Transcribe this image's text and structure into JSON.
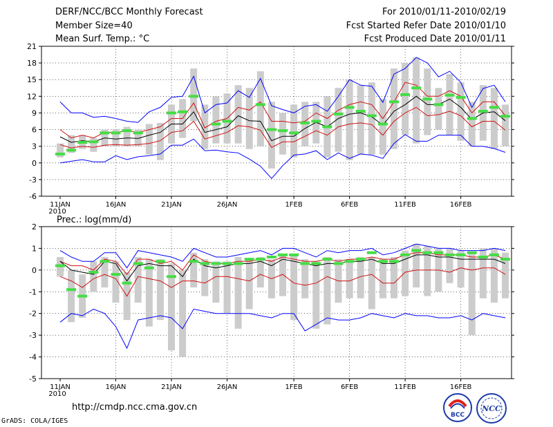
{
  "header": {
    "title": "DERF/NCC/BCC Monthly Forecast",
    "member_size": "Member Size=40",
    "variable": "Mean Surf. Temp.: °C",
    "period": "For 2010/01/11-2010/02/19",
    "fcst_started": "Fcst Started Refer Date 2010/01/10",
    "fcst_produced": "Fcst Produced Date 2010/01/11"
  },
  "footer": {
    "url": "http://cmdp.ncc.cma.gov.cn",
    "grads": "GrADS: COLA/IGES",
    "logo_bcc": "BCC",
    "logo_ncc": "NCC"
  },
  "colors": {
    "envelope": "#0000ff",
    "spread": "#d01010",
    "mean": "#000000",
    "box": "#cccccc",
    "observed": "#44dd44"
  },
  "chart_data": [
    {
      "type": "line",
      "title": "Mean Surf. Temp.: °C",
      "days": 40,
      "ylim": [
        -6,
        21
      ],
      "yticks": [
        -6,
        -3,
        0,
        3,
        6,
        9,
        12,
        15,
        18,
        21
      ],
      "xticks": [
        {
          "day": 0,
          "label": "11JAN",
          "sub": "2010"
        },
        {
          "day": 5,
          "label": "16JAN"
        },
        {
          "day": 10,
          "label": "21JAN"
        },
        {
          "day": 15,
          "label": "26JAN"
        },
        {
          "day": 21,
          "label": "1FEB"
        },
        {
          "day": 26,
          "label": "6FEB"
        },
        {
          "day": 31,
          "label": "11FEB"
        },
        {
          "day": 36,
          "label": "16FEB"
        }
      ],
      "series": [
        {
          "name": "max",
          "color": "#0000ff",
          "values": [
            11,
            9,
            9,
            8.2,
            8.4,
            8,
            7.5,
            7.3,
            9.2,
            10,
            11.8,
            12,
            15.6,
            9,
            10.5,
            10.8,
            13,
            11.8,
            15.2,
            10.3,
            9.6,
            9,
            10.2,
            10.5,
            9.3,
            12,
            15,
            14,
            13.8,
            10.9,
            16,
            17,
            19,
            18,
            15.5,
            16.5,
            14.5,
            10,
            13.4,
            14,
            11
          ]
        },
        {
          "name": "p90",
          "color": "#d01010",
          "values": [
            6,
            4.5,
            5,
            4.5,
            5.5,
            5.5,
            5.8,
            5.5,
            6,
            6.5,
            8,
            8,
            10.8,
            6.3,
            7.5,
            8,
            10,
            9.5,
            11,
            7.5,
            7.5,
            7.2,
            7.5,
            9,
            8,
            9.5,
            10.5,
            11,
            10.5,
            8,
            11,
            14.5,
            14,
            12,
            12,
            13,
            12,
            9,
            11,
            11,
            8.5
          ]
        },
        {
          "name": "mean",
          "color": "#000000",
          "values": [
            4.7,
            3.7,
            4,
            3.8,
            4.5,
            4.3,
            4.5,
            4.4,
            5,
            5.5,
            7,
            7,
            9.2,
            5.5,
            6,
            6.5,
            8.5,
            7.6,
            7.5,
            4,
            4.8,
            4.8,
            6.2,
            7.3,
            6.5,
            8,
            8.8,
            9,
            8.3,
            6.8,
            9.3,
            10.5,
            12,
            10.5,
            10.5,
            11.5,
            10,
            7.8,
            9,
            9.2,
            7.6
          ]
        },
        {
          "name": "p10",
          "color": "#d01010",
          "values": [
            3.3,
            2.7,
            3,
            2.8,
            3.2,
            3.3,
            3.2,
            3.3,
            3.5,
            4,
            5.5,
            5.8,
            7.5,
            4.3,
            4.9,
            5.5,
            6.7,
            6.5,
            5.9,
            2.8,
            3.8,
            3.8,
            4.8,
            5.8,
            5,
            6.5,
            7,
            7.2,
            6.9,
            5,
            7.5,
            9,
            10,
            8.5,
            8.7,
            9.3,
            8.5,
            6.5,
            7.5,
            7.5,
            5.9
          ]
        },
        {
          "name": "min",
          "color": "#0000ff",
          "values": [
            0,
            0.3,
            0.6,
            0.2,
            0.2,
            1.3,
            0.6,
            1.1,
            1.3,
            1.6,
            3.2,
            3.2,
            4.3,
            2.2,
            2.3,
            2,
            1.8,
            0.7,
            -0.6,
            -2.8,
            -0.5,
            1.4,
            1.6,
            2.2,
            0.6,
            1.8,
            0.8,
            1.6,
            1.4,
            0.8,
            3.5,
            5.1,
            3.9,
            3.9,
            5,
            5,
            5,
            3,
            3,
            2.6,
            1.9
          ]
        }
      ],
      "boxes": [
        [
          1,
          3.5
        ],
        [
          1.8,
          5
        ],
        [
          2.5,
          5
        ],
        [
          2,
          4.5
        ],
        [
          3,
          6
        ],
        [
          3,
          6
        ],
        [
          3,
          6.5
        ],
        [
          3,
          6
        ],
        [
          1.5,
          7
        ],
        [
          0.5,
          7.2
        ],
        [
          3.5,
          10.5
        ],
        [
          4.5,
          11.5
        ],
        [
          7.5,
          17
        ],
        [
          2.5,
          10.5
        ],
        [
          3.5,
          12
        ],
        [
          3.5,
          12.5
        ],
        [
          3.5,
          14
        ],
        [
          2.5,
          13.5
        ],
        [
          3,
          16.5
        ],
        [
          -1,
          11
        ],
        [
          1.5,
          9
        ],
        [
          1,
          10.5
        ],
        [
          3,
          11
        ],
        [
          3.5,
          11
        ],
        [
          1,
          12
        ],
        [
          2,
          13.5
        ],
        [
          0.5,
          15
        ],
        [
          1.5,
          14
        ],
        [
          1.5,
          14.5
        ],
        [
          1.5,
          11.5
        ],
        [
          2.5,
          17
        ],
        [
          5,
          18
        ],
        [
          3.5,
          19
        ],
        [
          5,
          17
        ],
        [
          6,
          13.5
        ],
        [
          5,
          16
        ],
        [
          4,
          14.5
        ],
        [
          3,
          11
        ],
        [
          4,
          14
        ],
        [
          2.5,
          13.5
        ],
        [
          3,
          10.5
        ]
      ],
      "observed": [
        1.6,
        2.3,
        3.7,
        3.8,
        5.4,
        5.4,
        5.8,
        5.4,
        null,
        null,
        9,
        9.2,
        12,
        null,
        7,
        7.5,
        null,
        null,
        10.5,
        6,
        5.8,
        5.4,
        7.2,
        7.5,
        6.5,
        8.8,
        10,
        9.3,
        8.5,
        7,
        11,
        12.3,
        13.5,
        11.5,
        10.5,
        12.2,
        11.8,
        8,
        9.3,
        10,
        8.4
      ]
    },
    {
      "type": "line",
      "title": "Prec.: log(mm/d)",
      "days": 40,
      "ylim": [
        -5,
        2
      ],
      "yticks": [
        -5,
        -4,
        -3,
        -2,
        -1,
        0,
        1,
        2
      ],
      "xticks": [
        {
          "day": 0,
          "label": "11JAN",
          "sub": "2010"
        },
        {
          "day": 5,
          "label": "16JAN"
        },
        {
          "day": 10,
          "label": "21JAN"
        },
        {
          "day": 15,
          "label": "26JAN"
        },
        {
          "day": 21,
          "label": "1FEB"
        },
        {
          "day": 26,
          "label": "6FEB"
        },
        {
          "day": 31,
          "label": "11FEB"
        },
        {
          "day": 36,
          "label": "16FEB"
        }
      ],
      "series": [
        {
          "name": "max",
          "color": "#0000ff",
          "values": [
            0.9,
            0.6,
            0.4,
            0.4,
            0.8,
            0.8,
            0.1,
            0.9,
            0.8,
            0.7,
            0.6,
            0.4,
            1,
            0.8,
            0.6,
            0.6,
            0.7,
            0.8,
            0.9,
            0.7,
            1,
            1,
            0.8,
            0.6,
            0.9,
            0.8,
            0.9,
            0.9,
            1,
            0.7,
            0.8,
            1,
            1.2,
            1.1,
            1,
            1,
            0.9,
            0.9,
            0.9,
            1,
            0.9
          ]
        },
        {
          "name": "p90",
          "color": "#d01010",
          "values": [
            0.4,
            0.2,
            0.2,
            0,
            0.5,
            0.4,
            -0.2,
            0.5,
            0.5,
            0.3,
            0.4,
            0,
            0.7,
            0.4,
            0.3,
            0.3,
            0.4,
            0.4,
            0.5,
            0.4,
            0.6,
            0.5,
            0.4,
            0.4,
            0.5,
            0.4,
            0.5,
            0.5,
            0.6,
            0.5,
            0.5,
            0.7,
            0.8,
            0.8,
            0.7,
            0.7,
            0.7,
            0.6,
            0.6,
            0.7,
            0.5
          ]
        },
        {
          "name": "mean",
          "color": "#000000",
          "values": [
            0.4,
            0,
            -0.1,
            -0.2,
            0.4,
            0.3,
            -0.5,
            0.2,
            0.3,
            0.2,
            0.2,
            -0.3,
            0.5,
            0.2,
            0.1,
            0.2,
            0.3,
            0.3,
            0.4,
            0.2,
            0.5,
            0.4,
            0.3,
            0.2,
            0.3,
            0.3,
            0.4,
            0.4,
            0.5,
            0.3,
            0.3,
            0.5,
            0.7,
            0.7,
            0.6,
            0.6,
            0.5,
            0.5,
            0.5,
            0.5,
            0.3
          ]
        },
        {
          "name": "p10",
          "color": "#d01010",
          "values": [
            -0.3,
            -0.5,
            -0.8,
            -0.4,
            -0.2,
            -0.4,
            -1.2,
            -0.3,
            -0.4,
            -0.5,
            -0.8,
            -0.5,
            -0.5,
            -0.6,
            -0.3,
            -0.3,
            -0.4,
            -0.5,
            -0.2,
            -0.4,
            -0.2,
            -0.6,
            -0.7,
            -0.6,
            -0.3,
            -0.5,
            -0.5,
            -0.3,
            -0.2,
            -0.6,
            -0.6,
            -0.1,
            0,
            0,
            0,
            -0.1,
            0.1,
            0,
            0.1,
            0.1,
            -0.2
          ]
        },
        {
          "name": "min",
          "color": "#0000ff",
          "values": [
            -2.4,
            -2,
            -2.1,
            -1.8,
            -2,
            -2.6,
            -3.6,
            -2.3,
            -2.2,
            -2.1,
            -2.2,
            -2.7,
            -1.8,
            -1.9,
            -2,
            -2,
            -2,
            -2,
            -2.1,
            -2.2,
            -2,
            -2,
            -2.8,
            -2.5,
            -2.2,
            -2.3,
            -2.3,
            -2.2,
            -2,
            -2.1,
            -2.2,
            -2,
            -2.1,
            -2.1,
            -2.2,
            -2.2,
            -2.1,
            -2.3,
            -2,
            -2.1,
            -2.2
          ]
        }
      ],
      "boxes": [
        [
          -0.3,
          0.6
        ],
        [
          -2.4,
          0
        ],
        [
          -2.2,
          -0.2
        ],
        [
          -1,
          0.4
        ],
        [
          -0.8,
          0.6
        ],
        [
          -1.5,
          0.4
        ],
        [
          -2.3,
          -0.1
        ],
        [
          -1.5,
          0.6
        ],
        [
          -2.6,
          0.5
        ],
        [
          -2.3,
          0.5
        ],
        [
          -3.7,
          0.3
        ],
        [
          -4,
          0
        ],
        [
          -0.8,
          0.8
        ],
        [
          -1.2,
          0.5
        ],
        [
          -1.5,
          0.4
        ],
        [
          -2,
          0.4
        ],
        [
          -2.7,
          0.6
        ],
        [
          -1.8,
          0.5
        ],
        [
          -0.8,
          0.6
        ],
        [
          -1.3,
          0.5
        ],
        [
          -1.2,
          0.7
        ],
        [
          -2.3,
          0.7
        ],
        [
          -1.3,
          0.5
        ],
        [
          -2.7,
          0.4
        ],
        [
          -2.5,
          0.6
        ],
        [
          -1.5,
          0.5
        ],
        [
          -1.3,
          0.5
        ],
        [
          -1.3,
          0.6
        ],
        [
          -1.8,
          0.6
        ],
        [
          -1.3,
          0.5
        ],
        [
          -1.3,
          0.6
        ],
        [
          -1.2,
          0.9
        ],
        [
          -0.8,
          1.2
        ],
        [
          -1.2,
          1.1
        ],
        [
          -1,
          1
        ],
        [
          -0.6,
          1
        ],
        [
          -0.8,
          0.9
        ],
        [
          -3,
          0.8
        ],
        [
          -1.3,
          1
        ],
        [
          -1.5,
          1
        ],
        [
          -1.3,
          0.8
        ]
      ],
      "observed": [
        0.2,
        -0.9,
        -1.2,
        -0.1,
        0.4,
        -0.2,
        -0.6,
        0.3,
        0.1,
        0.4,
        -0.3,
        null,
        0.4,
        0.3,
        0.3,
        0.3,
        0.3,
        0.5,
        0.5,
        0.6,
        0.7,
        0.7,
        0.3,
        0.3,
        0.5,
        0.3,
        0.4,
        0.5,
        0.8,
        0.4,
        0.4,
        0.7,
        0.9,
        0.8,
        0.8,
        0.7,
        0.7,
        0.8,
        0.6,
        0.7,
        0.5
      ]
    }
  ]
}
